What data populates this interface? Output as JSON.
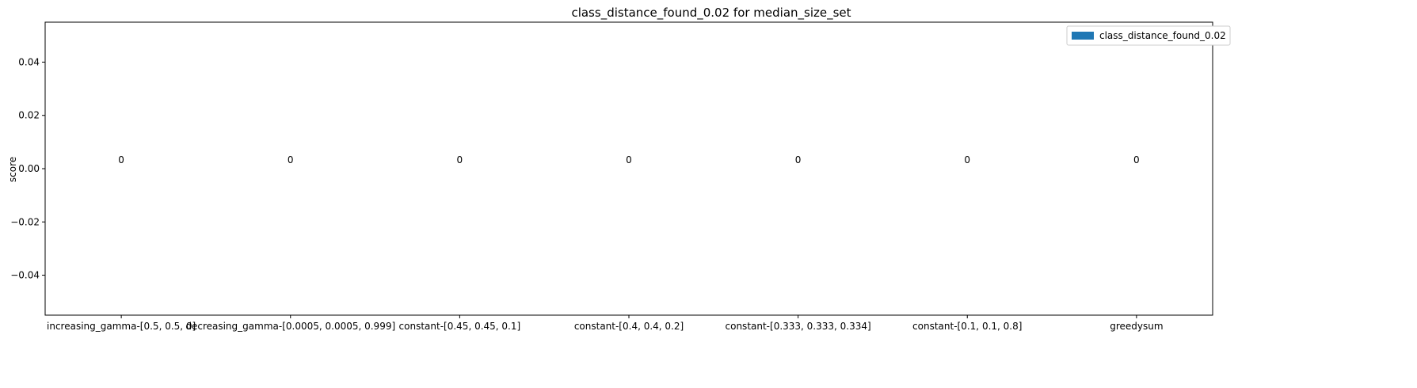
{
  "chart_data": {
    "type": "bar",
    "title": "class_distance_found_0.02 for median_size_set",
    "xlabel": "",
    "ylabel": "score",
    "categories": [
      "increasing_gamma-[0.5, 0.5, 0]",
      "decreasing_gamma-[0.0005, 0.0005, 0.999]",
      "constant-[0.45, 0.45, 0.1]",
      "constant-[0.4, 0.4, 0.2]",
      "constant-[0.333, 0.333, 0.334]",
      "constant-[0.1, 0.1, 0.8]",
      "greedysum"
    ],
    "series": [
      {
        "name": "class_distance_found_0.02",
        "values": [
          0,
          0,
          0,
          0,
          0,
          0,
          0
        ]
      }
    ],
    "data_labels": [
      "0",
      "0",
      "0",
      "0",
      "0",
      "0",
      "0"
    ],
    "ylim": [
      -0.055,
      0.055
    ],
    "yticks": [
      -0.04,
      -0.02,
      0.0,
      0.02,
      0.04
    ],
    "ytick_labels": [
      "−0.04",
      "−0.02",
      "0.00",
      "0.02",
      "0.04"
    ],
    "legend_position": "top-right",
    "grid": false,
    "colors": {
      "bar": "#1f77b4",
      "axis": "#000000"
    }
  }
}
